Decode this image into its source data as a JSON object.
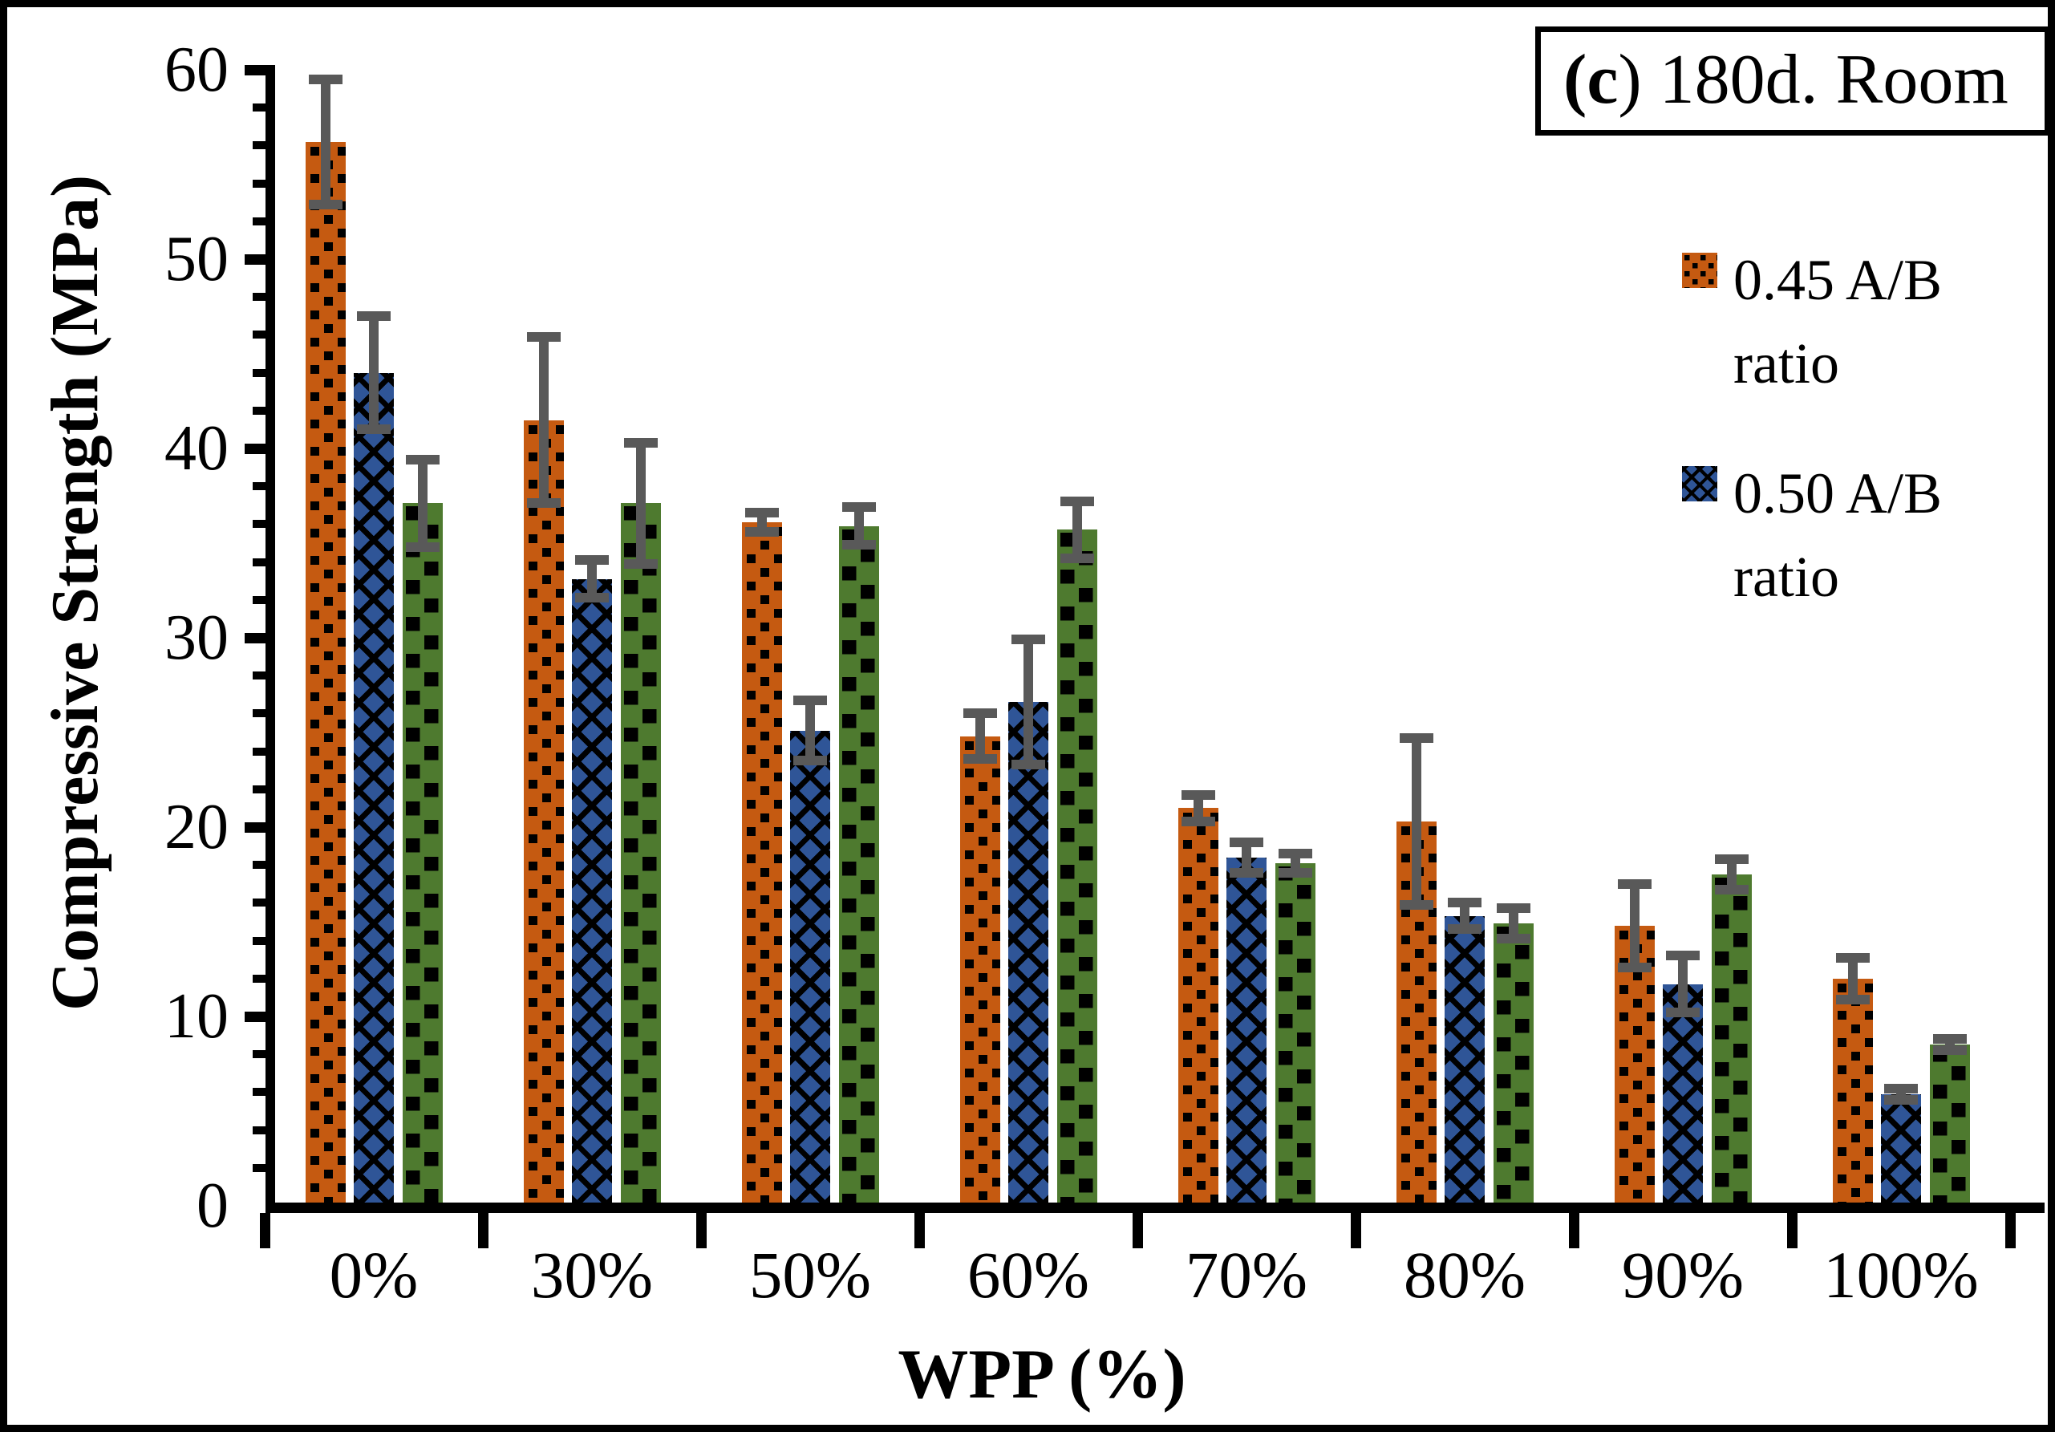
{
  "title": {
    "open": "(",
    "letter": "c",
    "rest": ") 180d. Room"
  },
  "axes": {
    "y_title": "Compressive Strength (MPa)",
    "x_title": "WPP (%)",
    "y_ticks": [
      0,
      10,
      20,
      30,
      40,
      50,
      60
    ],
    "y_minor_step": 2,
    "y_max": 60
  },
  "chart_data": {
    "type": "bar",
    "title": "(c) 180d. Room",
    "xlabel": "WPP (%)",
    "ylabel": "Compressive Strength (MPa)",
    "ylim": [
      0,
      60
    ],
    "grid": false,
    "legend_position": "upper right",
    "error_bar_color": "#595959",
    "categories": [
      "0%",
      "30%",
      "50%",
      "60%",
      "70%",
      "80%",
      "90%",
      "100%"
    ],
    "series": [
      {
        "name": "0.45 A/B ratio",
        "color": "#C55A11",
        "pattern": "dots",
        "in_legend": true,
        "values": [
          56.2,
          41.5,
          36.1,
          24.8,
          21.0,
          20.3,
          14.8,
          12.0
        ],
        "errors": [
          3.3,
          4.4,
          0.5,
          1.2,
          0.7,
          4.4,
          2.2,
          1.1
        ]
      },
      {
        "name": "0.50 A/B ratio",
        "color": "#2F5597",
        "pattern": "zigzag",
        "in_legend": true,
        "values": [
          44.0,
          33.1,
          25.1,
          26.6,
          18.4,
          15.3,
          11.7,
          5.9
        ],
        "errors": [
          3.0,
          1.0,
          1.6,
          3.3,
          0.8,
          0.7,
          1.5,
          0.3
        ]
      },
      {
        "name": "",
        "color": "#4E7A2F",
        "pattern": "checker",
        "in_legend": false,
        "values": [
          37.1,
          37.1,
          35.9,
          35.7,
          18.1,
          14.9,
          17.5,
          8.5
        ],
        "errors": [
          2.3,
          3.2,
          1.0,
          1.5,
          0.5,
          0.8,
          0.8,
          0.3
        ]
      }
    ]
  }
}
